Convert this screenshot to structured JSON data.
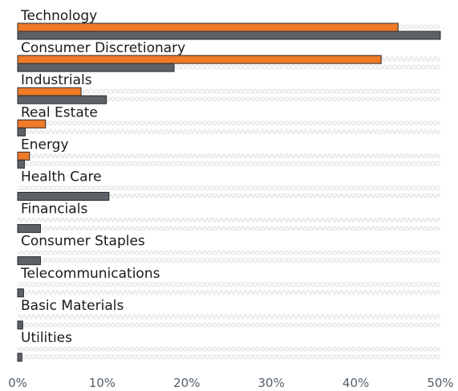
{
  "chart_data": {
    "type": "bar",
    "orientation": "horizontal",
    "categories": [
      "Technology",
      "Consumer Discretionary",
      "Industrials",
      "Real Estate",
      "Energy",
      "Health Care",
      "Financials",
      "Consumer Staples",
      "Telecommunications",
      "Basic Materials",
      "Utilities"
    ],
    "series": [
      {
        "color": "#f07a28",
        "values": [
          45.0,
          43.0,
          7.5,
          3.3,
          1.4,
          0.0,
          0.0,
          0.0,
          0.0,
          0.0,
          0.0
        ]
      },
      {
        "color": "#5c6267",
        "values": [
          50.0,
          18.5,
          10.5,
          0.9,
          0.8,
          10.8,
          2.7,
          2.7,
          0.7,
          0.6,
          0.5
        ]
      }
    ],
    "xlim": [
      0,
      50
    ],
    "x_ticks": [
      "0%",
      "10%",
      "20%",
      "30%",
      "40%",
      "50%"
    ],
    "title": "",
    "xlabel": "",
    "ylabel": "",
    "grid": false,
    "legend": "none"
  }
}
